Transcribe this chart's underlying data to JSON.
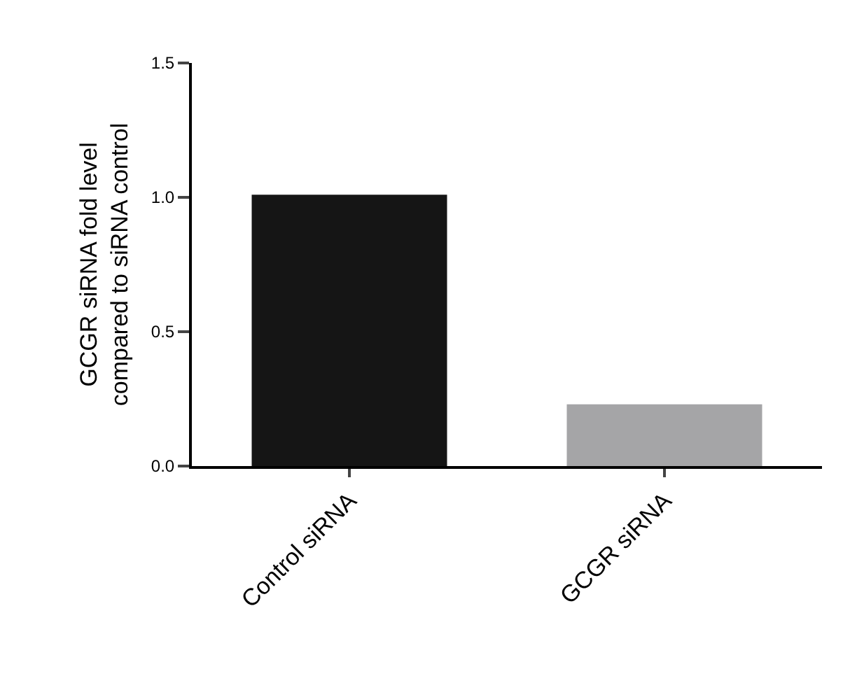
{
  "chart_data": {
    "type": "bar",
    "ylabel": "GCGR siRNA fold level\ncompared to siRNA control",
    "categories": [
      "Control siRNA",
      "GCGR siRNA"
    ],
    "values": [
      1.01,
      0.23
    ],
    "colors": [
      "#151515",
      "#a5a5a7"
    ],
    "ylim": [
      0,
      1.5
    ],
    "yticks": [
      {
        "value": 0,
        "label": "0.0"
      },
      {
        "value": 0.5,
        "label": "0.5"
      },
      {
        "value": 1,
        "label": "1.0"
      },
      {
        "value": 1.5,
        "label": "1.5"
      }
    ]
  }
}
